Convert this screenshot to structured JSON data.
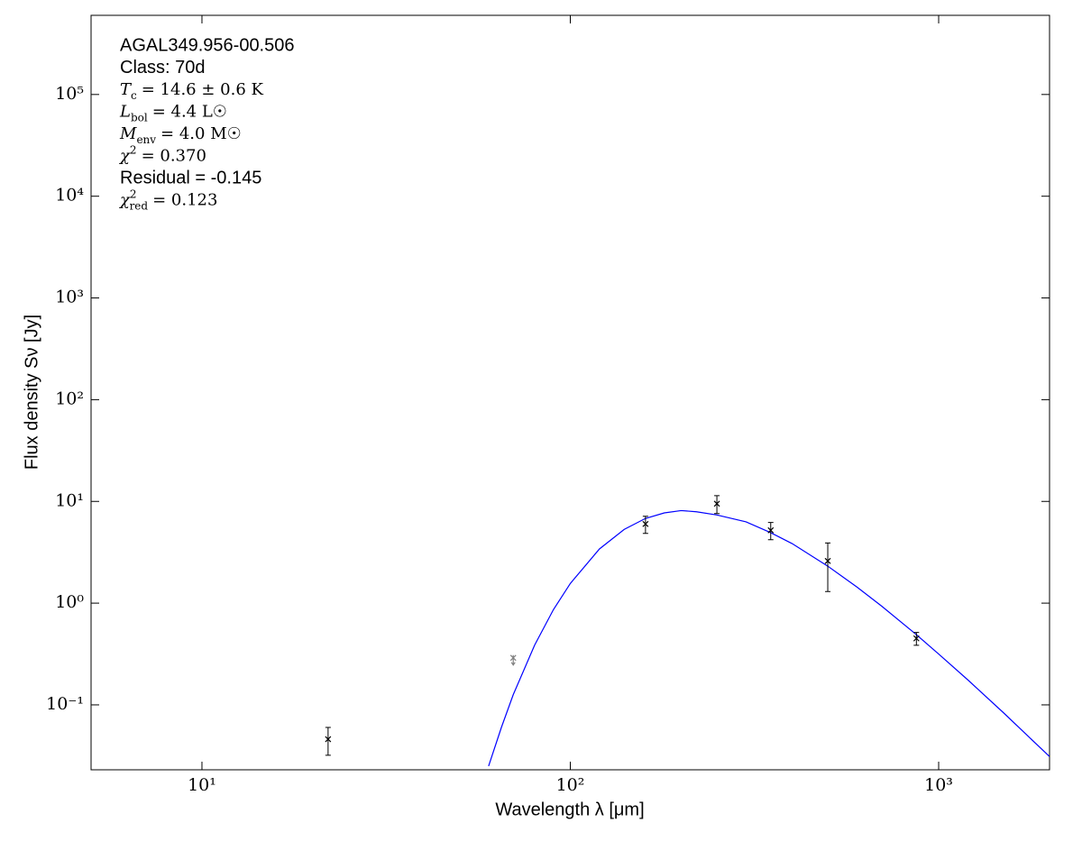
{
  "chart_data": {
    "type": "scatter",
    "xlabel": "Wavelength λ [μm]",
    "ylabel": "Flux density Sν [Jy]",
    "xscale": "log",
    "yscale": "log",
    "xlim": [
      5,
      2000
    ],
    "ylim": [
      0.023,
      600000
    ],
    "xticks": [
      {
        "value": 10,
        "label": "10¹"
      },
      {
        "value": 100,
        "label": "10²"
      },
      {
        "value": 1000,
        "label": "10³"
      }
    ],
    "yticks": [
      {
        "value": 0.1,
        "label": "10⁻¹"
      },
      {
        "value": 1,
        "label": "10⁰"
      },
      {
        "value": 10,
        "label": "10¹"
      },
      {
        "value": 100,
        "label": "10²"
      },
      {
        "value": 1000,
        "label": "10³"
      },
      {
        "value": 10000,
        "label": "10⁴"
      },
      {
        "value": 100000,
        "label": "10⁵"
      }
    ],
    "annotations": [
      {
        "text": "AGAL349.956-00.506"
      },
      {
        "text": "Class: 70d"
      },
      {
        "symbol": "T",
        "sub": "c",
        "rest": "= 14.6 ± 0.6 K"
      },
      {
        "symbol": "L",
        "sub": "bol",
        "rest": "= 4.4 L☉"
      },
      {
        "symbol": "M",
        "sub": "env",
        "rest": "= 4.0 M☉"
      },
      {
        "symbol": "χ",
        "sup": "2",
        "rest": "= 0.370"
      },
      {
        "text": "Residual = -0.145"
      },
      {
        "symbol": "χ",
        "sup": "2",
        "sub": "red",
        "rest": "= 0.123"
      }
    ],
    "points": {
      "color": "#000000",
      "x": [
        22,
        160,
        250,
        350,
        500,
        870
      ],
      "values": [
        0.046,
        6.0,
        9.5,
        5.2,
        2.6,
        0.45
      ],
      "errors": [
        0.014,
        1.15,
        1.9,
        1.0,
        1.3,
        0.065
      ]
    },
    "upper_limits": {
      "color": "#808080",
      "x": [
        70
      ],
      "values": [
        0.29
      ]
    },
    "model": {
      "color": "#0000ff",
      "x": [
        60,
        65,
        70,
        80,
        90,
        100,
        120,
        140,
        160,
        180,
        200,
        220,
        250,
        300,
        350,
        400,
        500,
        600,
        700,
        870,
        1000,
        1200,
        1500,
        2000
      ],
      "values": [
        0.025,
        0.06,
        0.126,
        0.386,
        0.864,
        1.56,
        3.41,
        5.3,
        6.8,
        7.71,
        8.12,
        7.91,
        7.35,
        6.29,
        4.93,
        3.85,
        2.31,
        1.44,
        0.936,
        0.49,
        0.316,
        0.176,
        0.0836,
        0.031
      ]
    }
  }
}
